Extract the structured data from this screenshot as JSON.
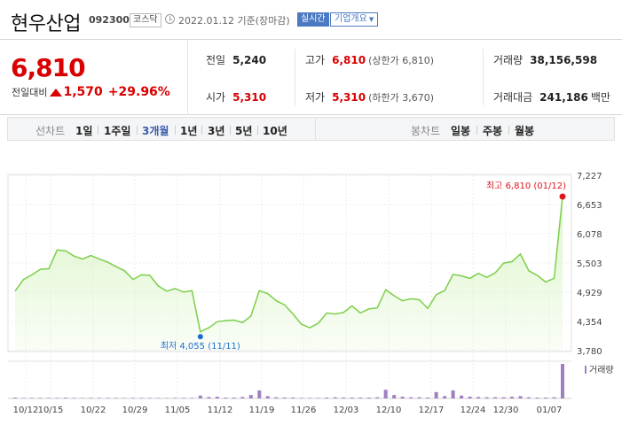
{
  "header": {
    "title": "현우산업",
    "code": "092300",
    "market": "코스닥",
    "date_text": "2022.01.12 기준(장마감)",
    "realtime_label": "실시간",
    "company_label": "기업개요"
  },
  "price": {
    "current": "6,810",
    "change_label": "전일대비",
    "change": "1,570",
    "change_pct": "+29.96%"
  },
  "stats": {
    "prev_label": "전일",
    "prev_value": "5,240",
    "high_label": "고가",
    "high_value": "6,810",
    "high_sub": "(상한가 6,810)",
    "volume_label": "거래량",
    "volume_value": "38,156,598",
    "open_label": "시가",
    "open_value": "5,310",
    "low_label": "저가",
    "low_value": "5,310",
    "low_sub": "(하한가 3,670)",
    "amount_label": "거래대금",
    "amount_value": "241,186",
    "amount_unit": "백만"
  },
  "tabs": {
    "line_label": "선차트",
    "line_items": [
      "1일",
      "1주일",
      "3개월",
      "1년",
      "3년",
      "5년",
      "10년"
    ],
    "line_active": 2,
    "candle_label": "봉차트",
    "candle_items": [
      "일봉",
      "주봉",
      "월봉"
    ]
  },
  "chart_data": {
    "type": "area",
    "y_ticks": [
      "7,227",
      "6,653",
      "6,078",
      "5,503",
      "4,929",
      "4,354",
      "3,780"
    ],
    "ylim": [
      3780,
      7227
    ],
    "x_ticks": [
      "10/12",
      "10/15",
      "10/22",
      "10/29",
      "11/05",
      "11/12",
      "11/19",
      "11/26",
      "12/03",
      "12/10",
      "12/17",
      "12/24",
      "12/30",
      "01/07"
    ],
    "values": [
      4950,
      5180,
      5270,
      5380,
      5390,
      5760,
      5740,
      5640,
      5580,
      5650,
      5580,
      5520,
      5430,
      5350,
      5180,
      5270,
      5260,
      5050,
      4950,
      5000,
      4930,
      4960,
      4150,
      4230,
      4350,
      4370,
      4380,
      4330,
      4460,
      4960,
      4900,
      4760,
      4680,
      4500,
      4300,
      4230,
      4320,
      4520,
      4500,
      4530,
      4660,
      4520,
      4600,
      4620,
      4980,
      4860,
      4760,
      4800,
      4780,
      4610,
      4880,
      4960,
      5280,
      5250,
      5200,
      5300,
      5220,
      5310,
      5500,
      5530,
      5680,
      5350,
      5260,
      5130,
      5200,
      6810
    ],
    "high_label": "최고 6,810 (01/12)",
    "low_label": "최저 4,055 (11/11)",
    "low_value": 4055,
    "low_index": 22,
    "volume_legend": "거래량",
    "volumes": [
      0.3,
      0.2,
      0.2,
      0.2,
      0.2,
      0.2,
      0.25,
      0.2,
      0.15,
      0.2,
      0.2,
      0.2,
      0.2,
      0.15,
      0.2,
      0.2,
      0.2,
      0.15,
      0.15,
      0.2,
      0.2,
      0.2,
      1.0,
      0.5,
      0.6,
      0.3,
      0.3,
      0.5,
      1.2,
      2.8,
      0.8,
      0.4,
      0.3,
      0.3,
      0.2,
      0.2,
      0.2,
      0.3,
      0.4,
      0.3,
      0.3,
      0.3,
      0.3,
      0.4,
      3.0,
      1.2,
      0.6,
      0.4,
      0.4,
      0.3,
      2.2,
      0.8,
      2.8,
      1.0,
      0.6,
      0.5,
      0.4,
      0.4,
      0.4,
      0.6,
      0.8,
      0.4,
      0.3,
      0.3,
      0.4,
      12.0
    ],
    "colors": {
      "line": "#7ccf4a",
      "fill": "#d9f4c4",
      "high": "#e0161c",
      "low": "#1a6bd4",
      "volume": "#a07fc1"
    }
  }
}
